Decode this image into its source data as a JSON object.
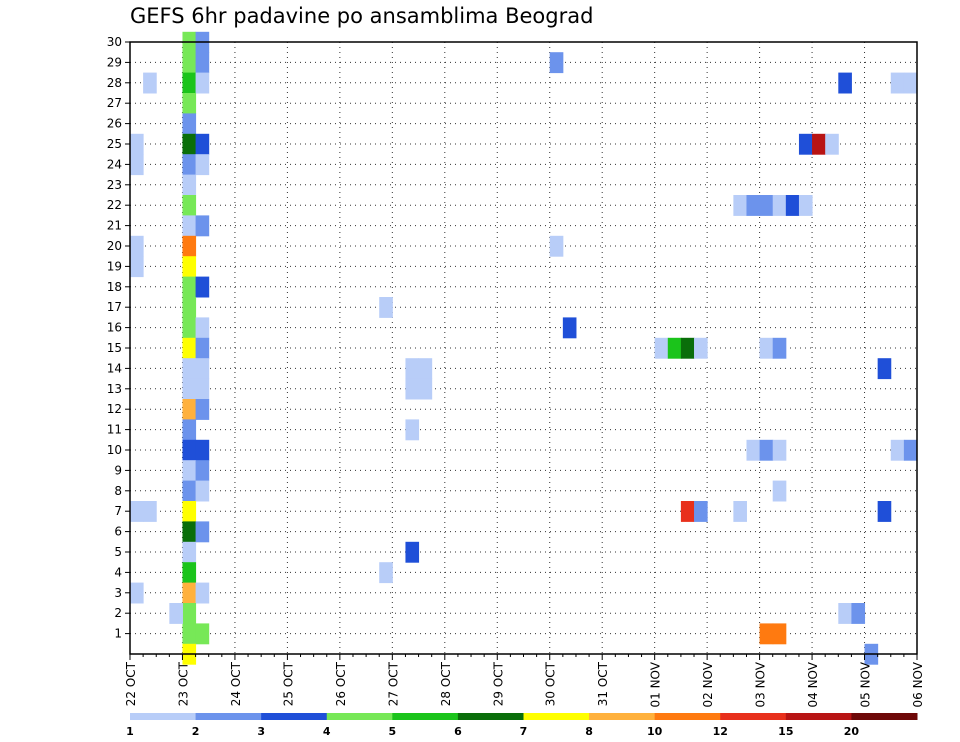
{
  "title": "GEFS 6hr padavine po ansamblima Beograd",
  "chart_data": {
    "type": "heatmap",
    "title": "GEFS 6hr padavine po ansamblima Beograd",
    "x_tick_labels": [
      "22 OCT",
      "23 OCT",
      "24 OCT",
      "25 OCT",
      "26 OCT",
      "27 OCT",
      "28 OCT",
      "29 OCT",
      "30 OCT",
      "31 OCT",
      "01 NOV",
      "02 NOV",
      "03 NOV",
      "04 NOV",
      "05 NOV",
      "06 NOV"
    ],
    "x_range_days": [
      0,
      15
    ],
    "x_step_hours": 6,
    "y_tick_labels": [
      1,
      2,
      3,
      4,
      5,
      6,
      7,
      8,
      9,
      10,
      11,
      12,
      13,
      14,
      15,
      16,
      17,
      18,
      19,
      20,
      21,
      22,
      23,
      24,
      25,
      26,
      27,
      28,
      29,
      30
    ],
    "y_range": [
      0,
      30
    ],
    "grid": "dotted",
    "legend_placement": "bottom",
    "levels": [
      {
        "label": "1",
        "color": "#b8cdf8"
      },
      {
        "label": "2",
        "color": "#6c93ec"
      },
      {
        "label": "3",
        "color": "#1f4fd8"
      },
      {
        "label": "4",
        "color": "#77e857"
      },
      {
        "label": "5",
        "color": "#1bc41b"
      },
      {
        "label": "6",
        "color": "#0a6e0a"
      },
      {
        "label": "7",
        "color": "#ffff00"
      },
      {
        "label": "8",
        "color": "#ffb13d"
      },
      {
        "label": "10",
        "color": "#ff7a10"
      },
      {
        "label": "12",
        "color": "#e8301c"
      },
      {
        "label": "15",
        "color": "#b81414"
      },
      {
        "label": "20",
        "color": "#6e0808"
      }
    ],
    "cells": [
      {
        "t": 1.0,
        "m": 30,
        "lvl": 4
      },
      {
        "t": 1.25,
        "m": 30,
        "lvl": 2
      },
      {
        "t": 1.0,
        "m": 29,
        "lvl": 4
      },
      {
        "t": 1.25,
        "m": 29,
        "lvl": 2
      },
      {
        "t": 1.0,
        "m": 28,
        "lvl": 5
      },
      {
        "t": 1.25,
        "m": 28,
        "lvl": 1
      },
      {
        "t": 1.0,
        "m": 27,
        "lvl": 4
      },
      {
        "t": 1.0,
        "m": 26,
        "lvl": 2
      },
      {
        "t": 1.0,
        "m": 25,
        "lvl": 6
      },
      {
        "t": 1.25,
        "m": 25,
        "lvl": 3
      },
      {
        "t": 1.0,
        "m": 24,
        "lvl": 2
      },
      {
        "t": 1.25,
        "m": 24,
        "lvl": 1
      },
      {
        "t": 1.0,
        "m": 23,
        "lvl": 1
      },
      {
        "t": 1.0,
        "m": 22,
        "lvl": 4
      },
      {
        "t": 1.0,
        "m": 21,
        "lvl": 1
      },
      {
        "t": 1.25,
        "m": 21,
        "lvl": 2
      },
      {
        "t": 1.0,
        "m": 20,
        "lvl": 9
      },
      {
        "t": 1.0,
        "m": 19,
        "lvl": 7
      },
      {
        "t": 1.0,
        "m": 18,
        "lvl": 4
      },
      {
        "t": 1.25,
        "m": 18,
        "lvl": 3
      },
      {
        "t": 1.0,
        "m": 17,
        "lvl": 4
      },
      {
        "t": 1.0,
        "m": 16,
        "lvl": 4
      },
      {
        "t": 1.25,
        "m": 16,
        "lvl": 1
      },
      {
        "t": 1.0,
        "m": 15,
        "lvl": 7
      },
      {
        "t": 1.25,
        "m": 15,
        "lvl": 2
      },
      {
        "t": 1.0,
        "m": 14,
        "lvl": 1
      },
      {
        "t": 1.25,
        "m": 14,
        "lvl": 1
      },
      {
        "t": 1.0,
        "m": 13,
        "lvl": 1
      },
      {
        "t": 1.25,
        "m": 13,
        "lvl": 1
      },
      {
        "t": 1.0,
        "m": 12,
        "lvl": 8
      },
      {
        "t": 1.25,
        "m": 12,
        "lvl": 2
      },
      {
        "t": 1.0,
        "m": 11,
        "lvl": 2
      },
      {
        "t": 1.0,
        "m": 10,
        "lvl": 3
      },
      {
        "t": 1.25,
        "m": 10,
        "lvl": 3
      },
      {
        "t": 1.0,
        "m": 9,
        "lvl": 1
      },
      {
        "t": 1.25,
        "m": 9,
        "lvl": 2
      },
      {
        "t": 1.0,
        "m": 8,
        "lvl": 2
      },
      {
        "t": 1.25,
        "m": 8,
        "lvl": 1
      },
      {
        "t": 1.0,
        "m": 7,
        "lvl": 7
      },
      {
        "t": 1.0,
        "m": 6,
        "lvl": 6
      },
      {
        "t": 1.25,
        "m": 6,
        "lvl": 2
      },
      {
        "t": 1.0,
        "m": 5,
        "lvl": 1
      },
      {
        "t": 1.0,
        "m": 4,
        "lvl": 5
      },
      {
        "t": 1.0,
        "m": 3,
        "lvl": 8
      },
      {
        "t": 1.25,
        "m": 3,
        "lvl": 1
      },
      {
        "t": 1.0,
        "m": 2,
        "lvl": 4
      },
      {
        "t": 1.0,
        "m": 1,
        "lvl": 4
      },
      {
        "t": 1.25,
        "m": 1,
        "lvl": 4
      },
      {
        "t": 1.0,
        "m": 0,
        "lvl": 7
      },
      {
        "t": 0.0,
        "m": 25,
        "lvl": 1
      },
      {
        "t": 0.0,
        "m": 24,
        "lvl": 1
      },
      {
        "t": 0.0,
        "m": 20,
        "lvl": 1
      },
      {
        "t": 0.0,
        "m": 19,
        "lvl": 1
      },
      {
        "t": 0.0,
        "m": 7,
        "lvl": 1
      },
      {
        "t": 0.25,
        "m": 7,
        "lvl": 1
      },
      {
        "t": 0.0,
        "m": 3,
        "lvl": 1
      },
      {
        "t": 0.25,
        "m": 28,
        "lvl": 1
      },
      {
        "t": 0.75,
        "m": 2,
        "lvl": 1
      },
      {
        "t": 4.75,
        "m": 17,
        "lvl": 1
      },
      {
        "t": 4.75,
        "m": 4,
        "lvl": 1
      },
      {
        "t": 5.25,
        "m": 14,
        "lvl": 1
      },
      {
        "t": 5.5,
        "m": 14,
        "lvl": 1
      },
      {
        "t": 5.25,
        "m": 13,
        "lvl": 1
      },
      {
        "t": 5.5,
        "m": 13,
        "lvl": 1
      },
      {
        "t": 5.25,
        "m": 11,
        "lvl": 1
      },
      {
        "t": 5.25,
        "m": 5,
        "lvl": 3
      },
      {
        "t": 8.0,
        "m": 29,
        "lvl": 2
      },
      {
        "t": 8.0,
        "m": 20,
        "lvl": 1
      },
      {
        "t": 8.25,
        "m": 16,
        "lvl": 3
      },
      {
        "t": 10.0,
        "m": 15,
        "lvl": 1
      },
      {
        "t": 10.25,
        "m": 15,
        "lvl": 5
      },
      {
        "t": 10.5,
        "m": 15,
        "lvl": 6
      },
      {
        "t": 10.75,
        "m": 15,
        "lvl": 1
      },
      {
        "t": 10.5,
        "m": 7,
        "lvl": 10
      },
      {
        "t": 10.75,
        "m": 7,
        "lvl": 2
      },
      {
        "t": 11.5,
        "m": 22,
        "lvl": 1
      },
      {
        "t": 11.75,
        "m": 22,
        "lvl": 2
      },
      {
        "t": 12.0,
        "m": 22,
        "lvl": 2
      },
      {
        "t": 12.25,
        "m": 22,
        "lvl": 1
      },
      {
        "t": 12.5,
        "m": 22,
        "lvl": 3
      },
      {
        "t": 12.75,
        "m": 22,
        "lvl": 1
      },
      {
        "t": 11.5,
        "m": 7,
        "lvl": 1
      },
      {
        "t": 11.75,
        "m": 10,
        "lvl": 1
      },
      {
        "t": 12.0,
        "m": 10,
        "lvl": 2
      },
      {
        "t": 12.25,
        "m": 10,
        "lvl": 1
      },
      {
        "t": 12.0,
        "m": 15,
        "lvl": 1
      },
      {
        "t": 12.25,
        "m": 15,
        "lvl": 2
      },
      {
        "t": 12.25,
        "m": 8,
        "lvl": 1
      },
      {
        "t": 12.0,
        "m": 1,
        "lvl": 9
      },
      {
        "t": 12.25,
        "m": 1,
        "lvl": 9
      },
      {
        "t": 12.75,
        "m": 25,
        "lvl": 3
      },
      {
        "t": 13.0,
        "m": 25,
        "lvl": 11
      },
      {
        "t": 13.25,
        "m": 25,
        "lvl": 1
      },
      {
        "t": 13.5,
        "m": 28,
        "lvl": 3
      },
      {
        "t": 13.5,
        "m": 2,
        "lvl": 1
      },
      {
        "t": 13.75,
        "m": 2,
        "lvl": 2
      },
      {
        "t": 14.0,
        "m": 0,
        "lvl": 2
      },
      {
        "t": 14.25,
        "m": 14,
        "lvl": 3
      },
      {
        "t": 14.25,
        "m": 7,
        "lvl": 3
      },
      {
        "t": 14.5,
        "m": 28,
        "lvl": 1
      },
      {
        "t": 14.75,
        "m": 28,
        "lvl": 1
      },
      {
        "t": 14.5,
        "m": 10,
        "lvl": 1
      },
      {
        "t": 14.75,
        "m": 10,
        "lvl": 2
      }
    ]
  }
}
